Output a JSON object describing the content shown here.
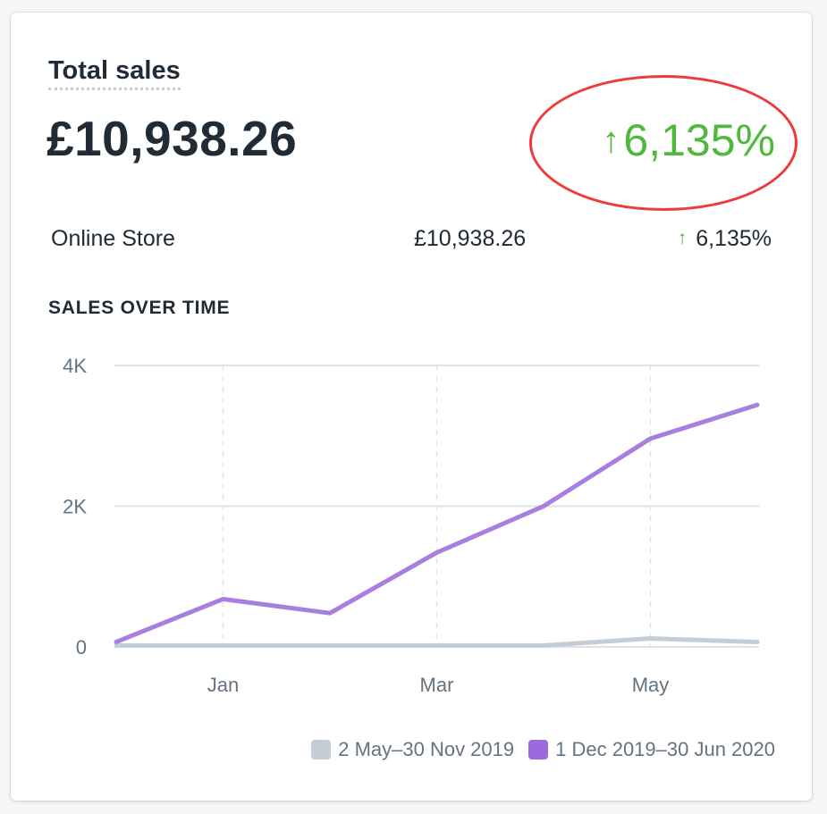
{
  "card": {
    "title": "Total sales",
    "total_value": "£10,938.26",
    "total_change": "6,135%",
    "total_change_color": "#50b83c",
    "annotation_color": "#ef3b3b"
  },
  "breakdown": [
    {
      "name": "Online Store",
      "amount": "£10,938.26",
      "change": "6,135%"
    }
  ],
  "section_title": "SALES OVER TIME",
  "icons": {
    "up_arrow": "up-arrow-icon"
  },
  "chart_data": {
    "type": "line",
    "x": [
      0,
      1,
      2,
      3,
      4,
      5,
      6
    ],
    "x_tick_labels": [
      {
        "x": 1,
        "label": "Jan"
      },
      {
        "x": 3,
        "label": "Mar"
      },
      {
        "x": 5,
        "label": "May"
      }
    ],
    "yticks": [
      {
        "value": 0,
        "label": "0"
      },
      {
        "value": 2000,
        "label": "2K"
      },
      {
        "value": 4000,
        "label": "4K"
      }
    ],
    "ylim": [
      0,
      4000
    ],
    "grid": true,
    "legend_position": "bottom-right",
    "series": [
      {
        "name": "2 May–30 Nov 2019",
        "color": "#c4cdd5",
        "values": [
          20,
          20,
          20,
          20,
          20,
          120,
          70
        ]
      },
      {
        "name": "1 Dec 2019–30 Jun 2020",
        "color": "#a77fe0",
        "legend_color": "#9c6ade",
        "values": [
          70,
          680,
          480,
          1340,
          2000,
          2960,
          3440
        ]
      }
    ]
  }
}
